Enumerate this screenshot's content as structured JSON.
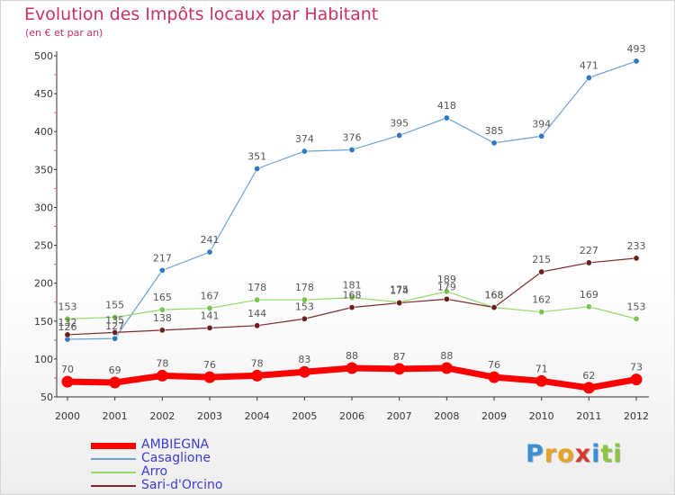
{
  "title": "Evolution des Impôts locaux par Habitant",
  "subtitle": "(en € et par an)",
  "brand": {
    "letters": [
      "P",
      "r",
      "o",
      "x",
      "i",
      "t",
      "i"
    ],
    "colors": [
      "#3a8fd6",
      "#e8a325",
      "#e8a325",
      "#d63a2f",
      "#3a8fd6",
      "#8cc63f",
      "#8cc63f"
    ]
  },
  "chart_data": {
    "type": "line",
    "title": "Evolution des Impôts locaux par Habitant",
    "subtitle": "(en € et par an)",
    "x": [
      "2000",
      "2001",
      "2002",
      "2003",
      "2004",
      "2005",
      "2006",
      "2007",
      "2008",
      "2009",
      "2010",
      "2011",
      "2012"
    ],
    "ylim": [
      50,
      500
    ],
    "yticks": [
      50,
      100,
      150,
      200,
      250,
      300,
      350,
      400,
      450,
      500
    ],
    "grid": false,
    "legend_position": "bottom-left",
    "series": [
      {
        "name": "AMBIEGNA",
        "color": "#ff0000",
        "emphasis": true,
        "values": [
          70,
          69,
          78,
          76,
          78,
          83,
          88,
          87,
          88,
          76,
          71,
          62,
          73
        ]
      },
      {
        "name": "Casaglione",
        "color": "#6aa2d6",
        "marker_color": "#2e79c2",
        "values": [
          126,
          127,
          217,
          241,
          351,
          374,
          376,
          395,
          418,
          385,
          394,
          471,
          493
        ],
        "labels": [
          "126",
          "127",
          "217",
          "241",
          "351",
          "374",
          "376",
          "395",
          "418",
          "385",
          "394",
          "471",
          "493"
        ]
      },
      {
        "name": "Arro",
        "color": "#96d96b",
        "marker_color": "#7cc44f",
        "values": [
          153,
          155,
          165,
          167,
          178,
          178,
          181,
          175,
          189,
          168,
          162,
          169,
          153
        ]
      },
      {
        "name": "Sari-d'Orcino",
        "color": "#7a2a2a",
        "marker_color": "#6b1e1e",
        "values": [
          132,
          135,
          138,
          141,
          144,
          153,
          168,
          174,
          179,
          168,
          215,
          227,
          233
        ]
      }
    ]
  }
}
